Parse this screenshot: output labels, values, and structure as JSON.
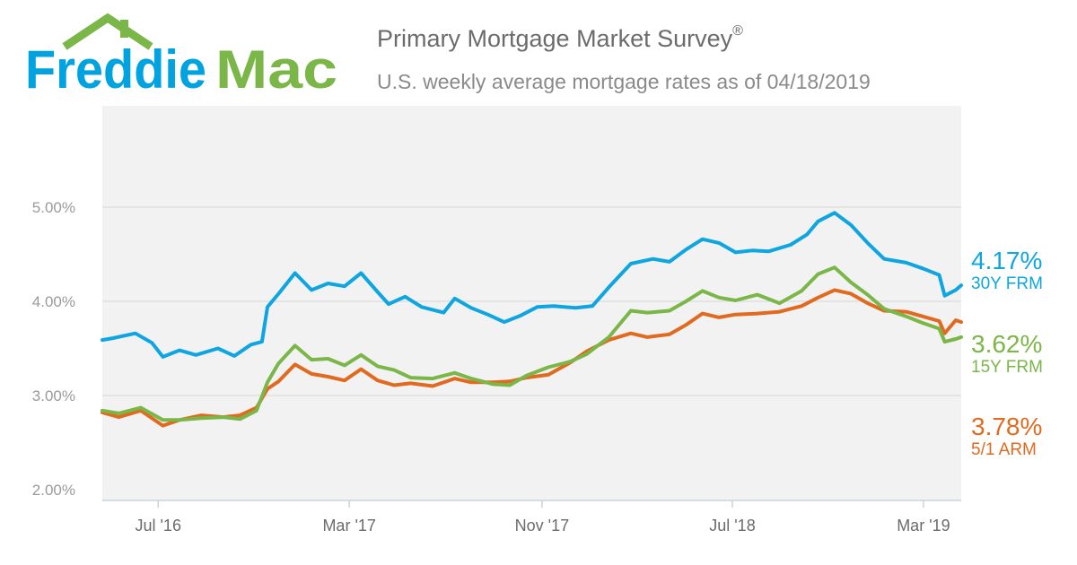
{
  "logo": {
    "text_left": "Freddie",
    "text_right": "Mac",
    "color_left": "#00a3e0",
    "color_right": "#7ab648"
  },
  "header": {
    "title": "Primary Mortgage Market Survey",
    "title_mark": "®",
    "subtitle": "U.S. weekly average mortgage rates as of 04/18/2019"
  },
  "chart_data": {
    "type": "line",
    "ylim": [
      2.0,
      5.0
    ],
    "yticks": [
      {
        "value": 2.0,
        "label": "2.00%"
      },
      {
        "value": 3.0,
        "label": "3.00%"
      },
      {
        "value": 4.0,
        "label": "4.00%"
      },
      {
        "value": 5.0,
        "label": "5.00%"
      }
    ],
    "xrange": [
      "2016-04-21",
      "2019-04-18"
    ],
    "xticks": [
      {
        "date": "2016-07-01",
        "label": "Jul '16"
      },
      {
        "date": "2017-03-01",
        "label": "Mar '17"
      },
      {
        "date": "2017-11-01",
        "label": "Nov '17"
      },
      {
        "date": "2018-07-01",
        "label": "Jul '18"
      },
      {
        "date": "2019-03-01",
        "label": "Mar '19"
      }
    ],
    "grid": true,
    "legend_placement": "right",
    "series": [
      {
        "name": "30Y FRM",
        "latest_label": "4.17%",
        "color": "#0ea5e0",
        "points": [
          [
            "2016-04-21",
            3.59
          ],
          [
            "2016-05-05",
            3.61
          ],
          [
            "2016-06-02",
            3.66
          ],
          [
            "2016-06-23",
            3.56
          ],
          [
            "2016-07-07",
            3.41
          ],
          [
            "2016-07-28",
            3.48
          ],
          [
            "2016-08-18",
            3.43
          ],
          [
            "2016-09-15",
            3.5
          ],
          [
            "2016-10-06",
            3.42
          ],
          [
            "2016-10-27",
            3.54
          ],
          [
            "2016-11-10",
            3.57
          ],
          [
            "2016-11-17",
            3.94
          ],
          [
            "2016-12-01",
            4.08
          ],
          [
            "2016-12-22",
            4.3
          ],
          [
            "2017-01-12",
            4.12
          ],
          [
            "2017-02-02",
            4.19
          ],
          [
            "2017-02-23",
            4.16
          ],
          [
            "2017-03-16",
            4.3
          ],
          [
            "2017-04-06",
            4.1
          ],
          [
            "2017-04-20",
            3.97
          ],
          [
            "2017-05-11",
            4.05
          ],
          [
            "2017-06-01",
            3.94
          ],
          [
            "2017-06-29",
            3.88
          ],
          [
            "2017-07-13",
            4.03
          ],
          [
            "2017-08-03",
            3.93
          ],
          [
            "2017-08-24",
            3.86
          ],
          [
            "2017-09-14",
            3.78
          ],
          [
            "2017-10-05",
            3.85
          ],
          [
            "2017-10-26",
            3.94
          ],
          [
            "2017-11-16",
            3.95
          ],
          [
            "2017-12-14",
            3.93
          ],
          [
            "2018-01-04",
            3.95
          ],
          [
            "2018-01-25",
            4.15
          ],
          [
            "2018-02-22",
            4.4
          ],
          [
            "2018-03-22",
            4.45
          ],
          [
            "2018-04-12",
            4.42
          ],
          [
            "2018-05-03",
            4.55
          ],
          [
            "2018-05-24",
            4.66
          ],
          [
            "2018-06-14",
            4.62
          ],
          [
            "2018-07-05",
            4.52
          ],
          [
            "2018-07-26",
            4.54
          ],
          [
            "2018-08-16",
            4.53
          ],
          [
            "2018-09-13",
            4.6
          ],
          [
            "2018-10-04",
            4.71
          ],
          [
            "2018-10-18",
            4.85
          ],
          [
            "2018-11-08",
            4.94
          ],
          [
            "2018-11-29",
            4.81
          ],
          [
            "2018-12-20",
            4.62
          ],
          [
            "2019-01-10",
            4.45
          ],
          [
            "2019-02-07",
            4.41
          ],
          [
            "2019-02-28",
            4.35
          ],
          [
            "2019-03-21",
            4.28
          ],
          [
            "2019-03-28",
            4.06
          ],
          [
            "2019-04-11",
            4.12
          ],
          [
            "2019-04-18",
            4.17
          ]
        ]
      },
      {
        "name": "15Y FRM",
        "latest_label": "3.62%",
        "color": "#7ab648",
        "points": [
          [
            "2016-04-21",
            2.84
          ],
          [
            "2016-05-12",
            2.81
          ],
          [
            "2016-06-09",
            2.87
          ],
          [
            "2016-07-07",
            2.74
          ],
          [
            "2016-07-28",
            2.74
          ],
          [
            "2016-08-25",
            2.76
          ],
          [
            "2016-09-22",
            2.77
          ],
          [
            "2016-10-13",
            2.75
          ],
          [
            "2016-11-03",
            2.84
          ],
          [
            "2016-11-17",
            3.14
          ],
          [
            "2016-12-01",
            3.34
          ],
          [
            "2016-12-22",
            3.53
          ],
          [
            "2017-01-12",
            3.38
          ],
          [
            "2017-02-02",
            3.39
          ],
          [
            "2017-02-23",
            3.32
          ],
          [
            "2017-03-16",
            3.43
          ],
          [
            "2017-04-06",
            3.31
          ],
          [
            "2017-04-27",
            3.27
          ],
          [
            "2017-05-18",
            3.19
          ],
          [
            "2017-06-15",
            3.18
          ],
          [
            "2017-07-13",
            3.24
          ],
          [
            "2017-08-03",
            3.18
          ],
          [
            "2017-08-31",
            3.12
          ],
          [
            "2017-09-21",
            3.11
          ],
          [
            "2017-10-12",
            3.21
          ],
          [
            "2017-11-09",
            3.3
          ],
          [
            "2017-12-07",
            3.36
          ],
          [
            "2017-12-28",
            3.44
          ],
          [
            "2018-01-25",
            3.62
          ],
          [
            "2018-02-22",
            3.9
          ],
          [
            "2018-03-15",
            3.88
          ],
          [
            "2018-04-12",
            3.9
          ],
          [
            "2018-05-03",
            4.0
          ],
          [
            "2018-05-24",
            4.11
          ],
          [
            "2018-06-14",
            4.04
          ],
          [
            "2018-07-05",
            4.01
          ],
          [
            "2018-08-02",
            4.07
          ],
          [
            "2018-08-30",
            3.98
          ],
          [
            "2018-09-27",
            4.11
          ],
          [
            "2018-10-18",
            4.29
          ],
          [
            "2018-11-08",
            4.36
          ],
          [
            "2018-11-29",
            4.2
          ],
          [
            "2018-12-20",
            4.07
          ],
          [
            "2019-01-10",
            3.92
          ],
          [
            "2019-02-07",
            3.84
          ],
          [
            "2019-02-28",
            3.77
          ],
          [
            "2019-03-21",
            3.71
          ],
          [
            "2019-03-28",
            3.57
          ],
          [
            "2019-04-11",
            3.6
          ],
          [
            "2019-04-18",
            3.62
          ]
        ]
      },
      {
        "name": "5/1 ARM",
        "latest_label": "3.78%",
        "color": "#e06a1f",
        "points": [
          [
            "2016-04-21",
            2.82
          ],
          [
            "2016-05-12",
            2.77
          ],
          [
            "2016-06-09",
            2.84
          ],
          [
            "2016-07-07",
            2.68
          ],
          [
            "2016-07-28",
            2.74
          ],
          [
            "2016-08-25",
            2.79
          ],
          [
            "2016-09-22",
            2.77
          ],
          [
            "2016-10-13",
            2.79
          ],
          [
            "2016-11-03",
            2.87
          ],
          [
            "2016-11-17",
            3.07
          ],
          [
            "2016-12-01",
            3.15
          ],
          [
            "2016-12-22",
            3.33
          ],
          [
            "2017-01-12",
            3.23
          ],
          [
            "2017-02-02",
            3.2
          ],
          [
            "2017-02-23",
            3.16
          ],
          [
            "2017-03-16",
            3.28
          ],
          [
            "2017-04-06",
            3.16
          ],
          [
            "2017-04-27",
            3.11
          ],
          [
            "2017-05-18",
            3.13
          ],
          [
            "2017-06-15",
            3.1
          ],
          [
            "2017-07-13",
            3.18
          ],
          [
            "2017-08-03",
            3.14
          ],
          [
            "2017-08-31",
            3.14
          ],
          [
            "2017-09-21",
            3.15
          ],
          [
            "2017-10-12",
            3.19
          ],
          [
            "2017-11-09",
            3.22
          ],
          [
            "2017-12-07",
            3.35
          ],
          [
            "2017-12-28",
            3.47
          ],
          [
            "2018-01-25",
            3.59
          ],
          [
            "2018-02-22",
            3.66
          ],
          [
            "2018-03-15",
            3.62
          ],
          [
            "2018-04-12",
            3.65
          ],
          [
            "2018-05-03",
            3.75
          ],
          [
            "2018-05-24",
            3.87
          ],
          [
            "2018-06-14",
            3.83
          ],
          [
            "2018-07-05",
            3.86
          ],
          [
            "2018-08-02",
            3.87
          ],
          [
            "2018-08-30",
            3.89
          ],
          [
            "2018-09-27",
            3.95
          ],
          [
            "2018-10-18",
            4.04
          ],
          [
            "2018-11-08",
            4.12
          ],
          [
            "2018-11-29",
            4.08
          ],
          [
            "2018-12-20",
            3.98
          ],
          [
            "2019-01-10",
            3.9
          ],
          [
            "2019-02-07",
            3.89
          ],
          [
            "2019-02-28",
            3.84
          ],
          [
            "2019-03-21",
            3.79
          ],
          [
            "2019-03-28",
            3.66
          ],
          [
            "2019-04-11",
            3.8
          ],
          [
            "2019-04-18",
            3.78
          ]
        ]
      }
    ]
  }
}
